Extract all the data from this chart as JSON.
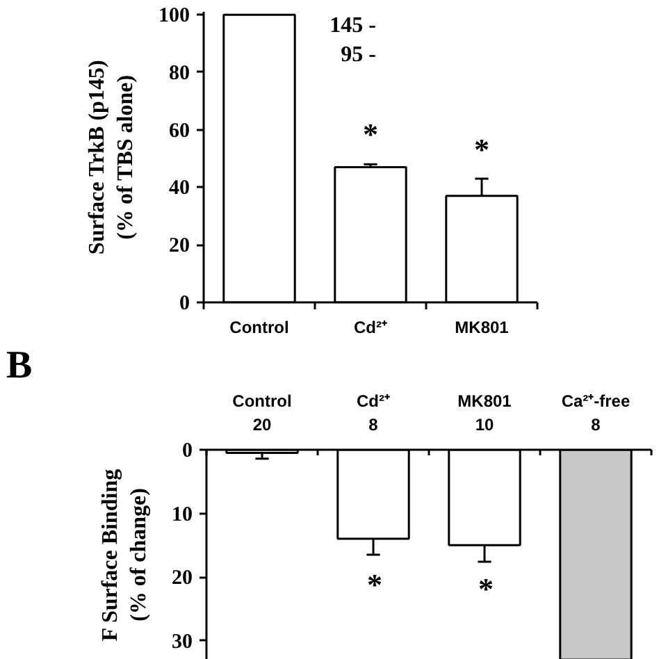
{
  "chart_data": [
    {
      "type": "bar",
      "categories": [
        "Control",
        "Cd²⁺",
        "MK801"
      ],
      "values": [
        100,
        47,
        37
      ],
      "colors": [
        "#ffffff",
        "#ffffff",
        "#ffffff"
      ],
      "errors": [
        null,
        1,
        6
      ],
      "ylim": [
        0,
        101
      ],
      "yticks": [
        0,
        20,
        40,
        60,
        80,
        100
      ],
      "ylabel": "Surface TrkB (p145)\n(% of TBS alone)",
      "annotations": [
        "*",
        "*",
        "145 -",
        "95 -"
      ]
    },
    {
      "type": "bar",
      "title": "B",
      "categories": [
        "Control\n20",
        "Cd²⁺\n8",
        "MK801\n10",
        "Ca²⁺-free\n8"
      ],
      "values": [
        0.5,
        14,
        15,
        33
      ],
      "colors": [
        "#ffffff",
        "#ffffff",
        "#ffffff",
        "#c8c8c8"
      ],
      "errors": [
        0.9,
        2.5,
        2.6,
        null
      ],
      "ylim": [
        33,
        0
      ],
      "yticks": [
        0,
        10,
        20,
        30
      ],
      "ylabel": "F Surface Binding\n(% of change)",
      "annotations": [
        "*",
        "*"
      ]
    }
  ]
}
